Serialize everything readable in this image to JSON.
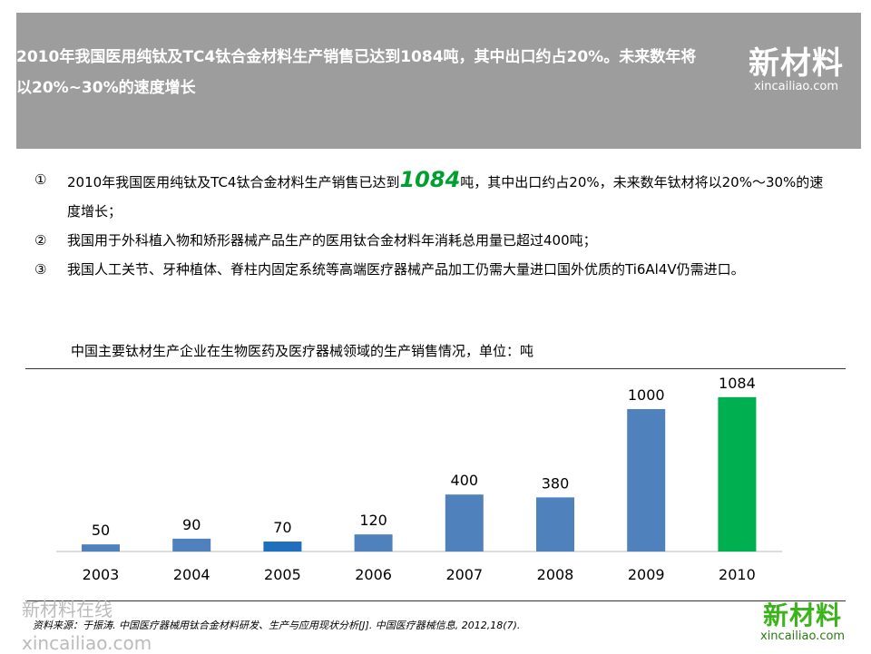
{
  "header": {
    "title": "2010年我国医用纯钛及TC4钛合金材料生产销售已达到1084吨，其中出口约占20%。未来数年将以20%~30%的速度增长"
  },
  "logo": {
    "cn": "新材料",
    "en": "xincailiao.com"
  },
  "bullets": [
    {
      "num": "①",
      "pre": "2010年我国医用纯钛及TC4钛合金材料生产销售已达到",
      "highlight": "1084",
      "post": "吨，其中出口约占20%，未来数年钛材将以20%～30%的速度增长；"
    },
    {
      "num": "②",
      "pre": "我国用于外科植入物和矫形器械产品生产的医用钛合金材料年消耗总用量已超过400吨；",
      "highlight": "",
      "post": ""
    },
    {
      "num": "③",
      "pre": "我国人工关节、牙种植体、脊柱内固定系统等高端医疗器械产品加工仍需大量进口国外优质的Ti6Al4V仍需进口。",
      "highlight": "",
      "post": ""
    }
  ],
  "watermark": {
    "cn": "新材料在线",
    "en": "xincailiao.com"
  },
  "source": "资料来源：于振涛. 中国医疗器械用钛合金材料研发、生产与应用现状分析[J]. 中国医疗器械信息, 2012,18(7).",
  "chart_data": {
    "type": "bar",
    "title": "中国主要钛材生产企业在生物医药及医疗器械领域的生产销售情况，单位：吨",
    "categories": [
      "2003",
      "2004",
      "2005",
      "2006",
      "2007",
      "2008",
      "2009",
      "2010"
    ],
    "values": [
      50,
      90,
      70,
      120,
      400,
      380,
      1000,
      1084
    ],
    "colors": [
      "#4f81bd",
      "#4f81bd",
      "#1f6fbf",
      "#4f81bd",
      "#4f81bd",
      "#4f81bd",
      "#4f81bd",
      "#00b050"
    ],
    "ylim": [
      0,
      1100
    ],
    "xlabel": "",
    "ylabel": ""
  }
}
